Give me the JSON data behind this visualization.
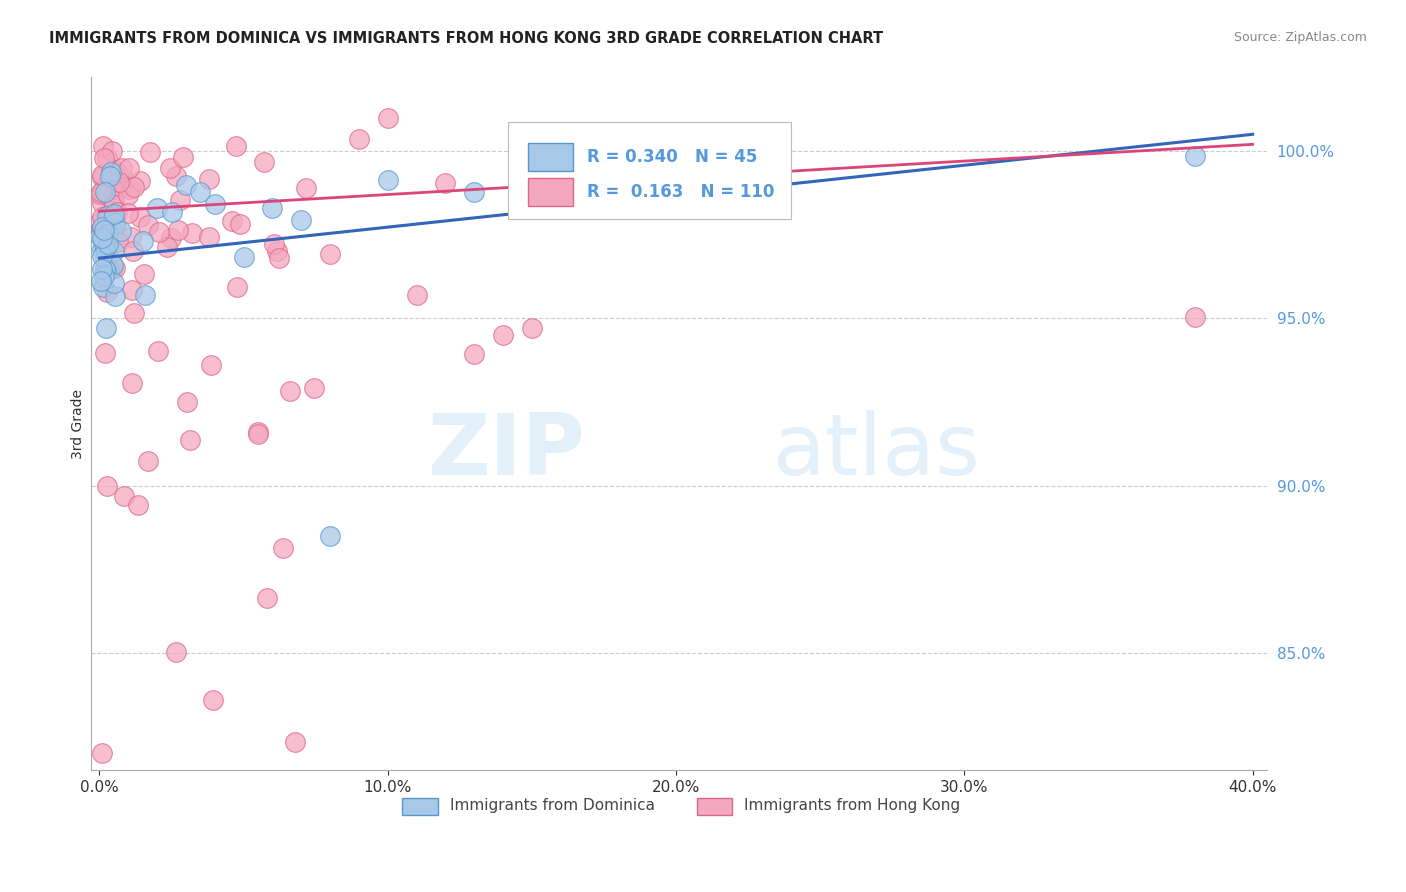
{
  "title": "IMMIGRANTS FROM DOMINICA VS IMMIGRANTS FROM HONG KONG 3RD GRADE CORRELATION CHART",
  "source": "Source: ZipAtlas.com",
  "ylabel_label": "3rd Grade",
  "xlim": [
    -0.3,
    40.5
  ],
  "ylim": [
    81.5,
    102.2
  ],
  "xticks": [
    0,
    10,
    20,
    30,
    40
  ],
  "xticklabels": [
    "0.0%",
    "10.0%",
    "20.0%",
    "30.0%",
    "40.0%"
  ],
  "yticks": [
    85.0,
    90.0,
    95.0,
    100.0
  ],
  "yticklabels": [
    "85.0%",
    "90.0%",
    "95.0%",
    "100.0%"
  ],
  "blue_color": "#a8c8e8",
  "pink_color": "#f4a8c0",
  "blue_edge_color": "#5599cc",
  "pink_edge_color": "#dd6688",
  "blue_line_color": "#3366bb",
  "pink_line_color": "#dd4477",
  "legend_R_blue": "0.340",
  "legend_N_blue": "45",
  "legend_R_pink": "0.163",
  "legend_N_pink": "110",
  "watermark_zip": "ZIP",
  "watermark_atlas": "atlas",
  "tick_color": "#5599dd",
  "grid_color": "#cccccc",
  "blue_trend_x0": 0.0,
  "blue_trend_y0": 96.8,
  "blue_trend_x1": 40.0,
  "blue_trend_y1": 100.5,
  "pink_trend_x0": 0.0,
  "pink_trend_y0": 98.2,
  "pink_trend_x1": 40.0,
  "pink_trend_y1": 100.2
}
